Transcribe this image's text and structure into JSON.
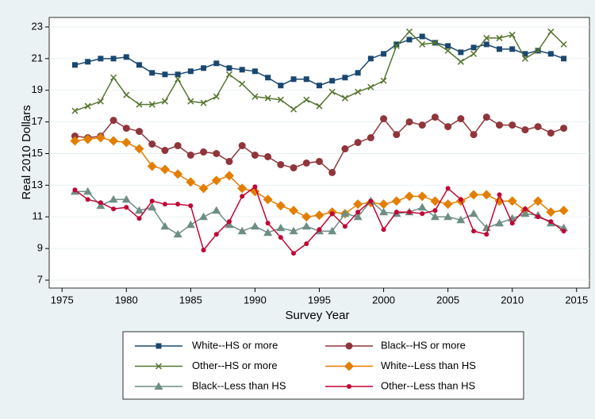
{
  "chart_data": {
    "type": "line",
    "xlabel": "Survey Year",
    "ylabel": "Real 2010 Dollars",
    "x": [
      1976,
      1977,
      1978,
      1979,
      1980,
      1981,
      1982,
      1983,
      1984,
      1985,
      1986,
      1987,
      1988,
      1989,
      1990,
      1991,
      1992,
      1993,
      1994,
      1995,
      1996,
      1997,
      1998,
      1999,
      2000,
      2001,
      2002,
      2003,
      2004,
      2005,
      2006,
      2007,
      2008,
      2009,
      2010,
      2011,
      2012,
      2013,
      2014
    ],
    "xlim": [
      1974,
      2016
    ],
    "xticks": [
      1975,
      1980,
      1985,
      1990,
      1995,
      2000,
      2005,
      2010,
      2015
    ],
    "ylim": [
      6.5,
      23.6
    ],
    "yticks": [
      7,
      9,
      11,
      13,
      15,
      17,
      19,
      21,
      23
    ],
    "grid": true,
    "series": [
      {
        "name": "White--HS or more",
        "color": "#1a476f",
        "marker": "square",
        "values": [
          20.6,
          20.8,
          21.0,
          21.0,
          21.1,
          20.6,
          20.1,
          20.0,
          20.0,
          20.2,
          20.4,
          20.7,
          20.4,
          20.3,
          20.2,
          19.8,
          19.3,
          19.7,
          19.7,
          19.3,
          19.6,
          19.8,
          20.1,
          21.0,
          21.3,
          21.9,
          22.2,
          22.4,
          22.0,
          21.8,
          21.4,
          21.7,
          21.9,
          21.6,
          21.6,
          21.3,
          21.5,
          21.3,
          21.0
        ]
      },
      {
        "name": "Black--HS or more",
        "color": "#90353b",
        "marker": "circle",
        "values": [
          16.1,
          16.0,
          16.1,
          17.1,
          16.6,
          16.4,
          15.6,
          15.2,
          15.5,
          14.9,
          15.1,
          15.0,
          14.5,
          15.5,
          14.9,
          14.8,
          14.3,
          14.1,
          14.4,
          14.5,
          13.8,
          15.3,
          15.7,
          16.0,
          17.2,
          16.2,
          17.0,
          16.8,
          17.3,
          16.7,
          17.2,
          16.2,
          17.3,
          16.8,
          16.8,
          16.5,
          16.7,
          16.3,
          16.6
        ]
      },
      {
        "name": "Other--HS or more",
        "color": "#55752f",
        "marker": "x",
        "values": [
          17.7,
          18.0,
          18.3,
          19.8,
          18.7,
          18.1,
          18.1,
          18.3,
          19.7,
          18.3,
          18.2,
          18.6,
          20.0,
          19.4,
          18.6,
          18.5,
          18.4,
          17.8,
          18.4,
          18.0,
          18.9,
          18.5,
          18.9,
          19.2,
          19.6,
          21.8,
          22.7,
          21.9,
          22.0,
          21.5,
          20.8,
          21.3,
          22.3,
          22.3,
          22.5,
          21.0,
          21.5,
          22.7,
          21.9
        ]
      },
      {
        "name": "White--Less than HS",
        "color": "#e37e00",
        "marker": "diamond",
        "values": [
          15.8,
          15.9,
          16.0,
          15.8,
          15.7,
          15.3,
          14.2,
          14.0,
          13.7,
          13.2,
          12.8,
          13.3,
          13.6,
          12.8,
          12.6,
          12.1,
          11.7,
          11.4,
          11.0,
          11.1,
          11.3,
          11.2,
          11.8,
          11.9,
          11.8,
          12.0,
          12.3,
          12.3,
          12.0,
          11.8,
          12.0,
          12.4,
          12.4,
          12.0,
          12.0,
          11.4,
          12.0,
          11.3,
          11.4
        ]
      },
      {
        "name": "Black--Less than HS",
        "color": "#6e8e84",
        "marker": "triangle",
        "values": [
          12.6,
          12.6,
          11.7,
          12.1,
          12.1,
          11.4,
          11.6,
          10.4,
          9.9,
          10.5,
          11.0,
          11.4,
          10.5,
          10.1,
          10.4,
          10.0,
          10.3,
          10.1,
          10.4,
          10.1,
          10.1,
          11.2,
          11.0,
          12.0,
          11.3,
          11.2,
          11.3,
          11.6,
          11.0,
          11.0,
          10.8,
          11.2,
          10.3,
          10.6,
          10.9,
          11.2,
          11.1,
          10.6,
          10.3
        ]
      },
      {
        "name": "Other--Less than HS",
        "color": "#c10534",
        "marker": "dot",
        "values": [
          12.7,
          12.1,
          11.9,
          11.5,
          11.6,
          10.9,
          12.0,
          11.8,
          11.8,
          11.7,
          8.9,
          9.9,
          10.7,
          12.3,
          12.9,
          10.6,
          9.7,
          8.7,
          9.3,
          10.2,
          11.2,
          10.4,
          11.3,
          12.0,
          10.2,
          11.3,
          11.3,
          11.2,
          11.4,
          12.8,
          12.1,
          10.1,
          9.9,
          12.4,
          10.6,
          11.5,
          11.0,
          10.7,
          10.1
        ]
      }
    ]
  }
}
